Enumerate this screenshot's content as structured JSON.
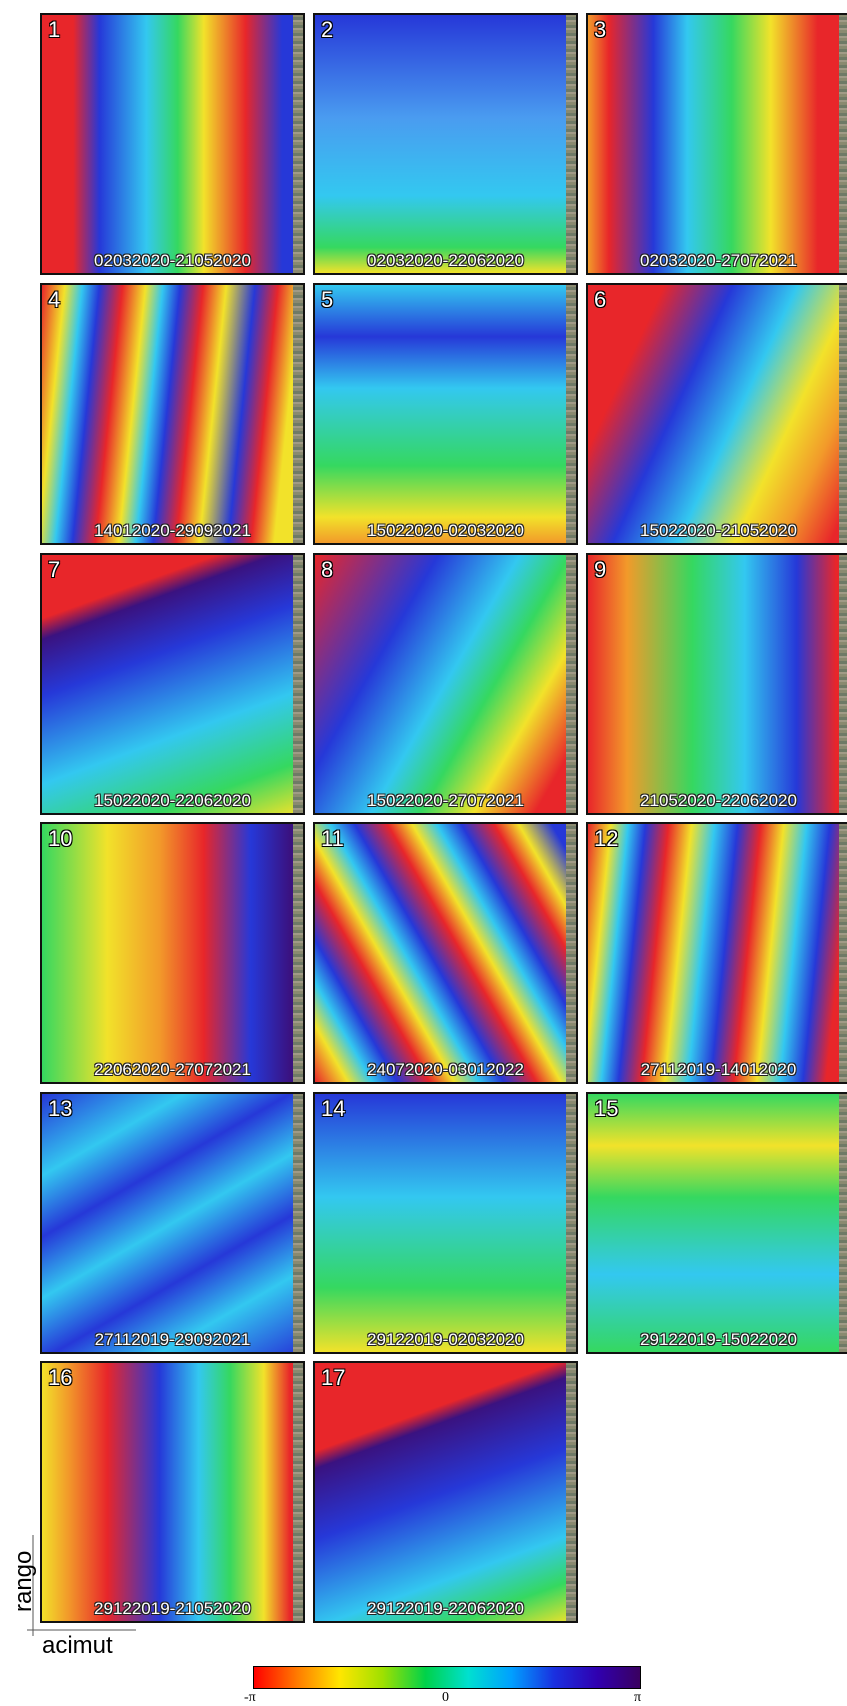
{
  "panels": [
    {
      "number": "1",
      "label": "02032020-21052020"
    },
    {
      "number": "2",
      "label": "02032020-22062020"
    },
    {
      "number": "3",
      "label": "02032020-27072021"
    },
    {
      "number": "4",
      "label": "14012020-29092021"
    },
    {
      "number": "5",
      "label": "15022020-02032020"
    },
    {
      "number": "6",
      "label": "15022020-21052020"
    },
    {
      "number": "7",
      "label": "15022020-22062020"
    },
    {
      "number": "8",
      "label": "15022020-27072021"
    },
    {
      "number": "9",
      "label": "21052020-22062020"
    },
    {
      "number": "10",
      "label": "22062020-27072021"
    },
    {
      "number": "11",
      "label": "24072020-03012022"
    },
    {
      "number": "12",
      "label": "27112019-14012020"
    },
    {
      "number": "13",
      "label": "27112019-29092021"
    },
    {
      "number": "14",
      "label": "29122019-02032020"
    },
    {
      "number": "15",
      "label": "29122019-15022020"
    },
    {
      "number": "16",
      "label": "29122019-21052020"
    },
    {
      "number": "17",
      "label": "29122019-22062020"
    }
  ],
  "axes": {
    "range": "rango",
    "azimuth": "acimut"
  },
  "colorbar": {
    "min": "-π",
    "mid": "0",
    "max": "π"
  }
}
